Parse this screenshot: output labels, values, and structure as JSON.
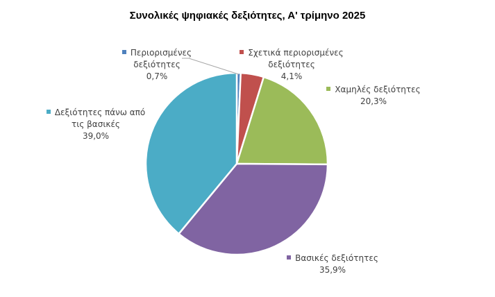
{
  "chart_data": {
    "type": "pie",
    "title": "Συνολικές ψηφιακές δεξιότητες, Α' τρίμηνο 2025",
    "slices": [
      {
        "label_lines": [
          "Περιορισμένες",
          "δεξιότητες"
        ],
        "value": 0.7,
        "value_label": "0,7%",
        "color": "#4f81bd"
      },
      {
        "label_lines": [
          "Σχετικά περιορισμένες",
          "δεξιότητες"
        ],
        "value": 4.1,
        "value_label": "4,1%",
        "color": "#c0504d"
      },
      {
        "label_lines": [
          "Χαμηλές δεξιότητες"
        ],
        "value": 20.3,
        "value_label": "20,3%",
        "color": "#9bbb59"
      },
      {
        "label_lines": [
          "Βασικές δεξιότητες"
        ],
        "value": 35.9,
        "value_label": "35,9%",
        "color": "#8064a2"
      },
      {
        "label_lines": [
          "Δεξιότητες πάνω από",
          "τις βασικές"
        ],
        "value": 39.0,
        "value_label": "39,0%",
        "color": "#4bacc6"
      }
    ],
    "legend": "none",
    "data_labels": "category-and-percent"
  }
}
